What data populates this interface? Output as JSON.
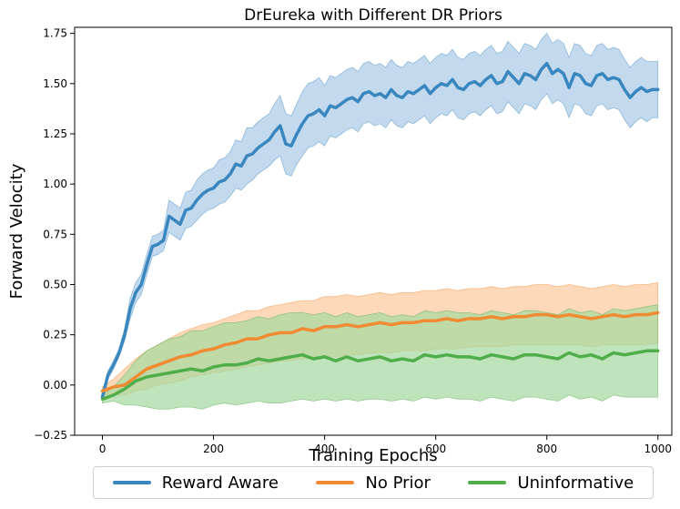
{
  "chart_data": {
    "type": "line",
    "title": "DrEureka with Different DR Priors",
    "xlabel": "Training Epochs",
    "ylabel": "Forward Velocity",
    "xlim": [
      -50,
      1025
    ],
    "ylim": [
      -0.25,
      1.78
    ],
    "xticks": [
      0,
      200,
      400,
      600,
      800,
      1000
    ],
    "xtick_labels": [
      "0",
      "200",
      "400",
      "600",
      "800",
      "1000"
    ],
    "yticks": [
      -0.25,
      0.0,
      0.25,
      0.5,
      0.75,
      1.0,
      1.25,
      1.5,
      1.75
    ],
    "ytick_labels": [
      "−0.25",
      "0.00",
      "0.25",
      "0.50",
      "0.75",
      "1.00",
      "1.25",
      "1.50",
      "1.75"
    ],
    "grid": false,
    "legend_position": "bottom-center",
    "series": [
      {
        "name": "Reward Aware",
        "color": "#3a87c0",
        "band_color": "#a9c9e6",
        "x": [
          0,
          10,
          20,
          30,
          40,
          50,
          60,
          70,
          80,
          90,
          100,
          110,
          120,
          130,
          140,
          150,
          160,
          170,
          180,
          190,
          200,
          210,
          220,
          230,
          240,
          250,
          260,
          270,
          280,
          290,
          300,
          310,
          320,
          330,
          340,
          350,
          360,
          370,
          380,
          390,
          400,
          410,
          420,
          430,
          440,
          450,
          460,
          470,
          480,
          490,
          500,
          510,
          520,
          530,
          540,
          550,
          560,
          570,
          580,
          590,
          600,
          610,
          620,
          630,
          640,
          650,
          660,
          670,
          680,
          690,
          700,
          710,
          720,
          730,
          740,
          750,
          760,
          770,
          780,
          790,
          800,
          810,
          820,
          830,
          840,
          850,
          860,
          870,
          880,
          890,
          900,
          910,
          920,
          930,
          940,
          950,
          960,
          970,
          980,
          990,
          1000
        ],
        "y": [
          -0.06,
          0.05,
          0.1,
          0.16,
          0.25,
          0.38,
          0.46,
          0.5,
          0.6,
          0.69,
          0.7,
          0.72,
          0.84,
          0.82,
          0.8,
          0.87,
          0.88,
          0.92,
          0.95,
          0.97,
          0.98,
          1.01,
          1.02,
          1.05,
          1.1,
          1.09,
          1.14,
          1.15,
          1.18,
          1.2,
          1.22,
          1.26,
          1.29,
          1.2,
          1.19,
          1.25,
          1.3,
          1.34,
          1.35,
          1.37,
          1.34,
          1.39,
          1.38,
          1.4,
          1.42,
          1.43,
          1.41,
          1.45,
          1.46,
          1.44,
          1.45,
          1.43,
          1.47,
          1.44,
          1.43,
          1.46,
          1.45,
          1.47,
          1.49,
          1.45,
          1.48,
          1.5,
          1.49,
          1.52,
          1.48,
          1.47,
          1.5,
          1.51,
          1.49,
          1.52,
          1.54,
          1.5,
          1.51,
          1.56,
          1.53,
          1.5,
          1.55,
          1.54,
          1.52,
          1.57,
          1.6,
          1.55,
          1.57,
          1.55,
          1.48,
          1.55,
          1.54,
          1.5,
          1.49,
          1.54,
          1.55,
          1.52,
          1.53,
          1.52,
          1.47,
          1.43,
          1.46,
          1.48,
          1.46,
          1.47,
          1.47
        ],
        "lower": [
          -0.07,
          0.03,
          0.08,
          0.14,
          0.22,
          0.33,
          0.41,
          0.45,
          0.55,
          0.64,
          0.65,
          0.67,
          0.76,
          0.74,
          0.72,
          0.78,
          0.79,
          0.82,
          0.85,
          0.87,
          0.88,
          0.9,
          0.91,
          0.94,
          0.98,
          0.97,
          1.0,
          1.02,
          1.05,
          1.07,
          1.09,
          1.12,
          1.14,
          1.05,
          1.04,
          1.1,
          1.14,
          1.18,
          1.19,
          1.21,
          1.19,
          1.24,
          1.23,
          1.25,
          1.27,
          1.28,
          1.26,
          1.3,
          1.31,
          1.29,
          1.3,
          1.28,
          1.32,
          1.29,
          1.28,
          1.31,
          1.3,
          1.32,
          1.34,
          1.3,
          1.33,
          1.35,
          1.34,
          1.37,
          1.33,
          1.32,
          1.35,
          1.36,
          1.34,
          1.37,
          1.39,
          1.35,
          1.36,
          1.41,
          1.38,
          1.35,
          1.4,
          1.39,
          1.37,
          1.42,
          1.45,
          1.4,
          1.42,
          1.4,
          1.33,
          1.4,
          1.39,
          1.35,
          1.34,
          1.39,
          1.4,
          1.37,
          1.38,
          1.37,
          1.32,
          1.28,
          1.31,
          1.33,
          1.31,
          1.33,
          1.33
        ],
        "upper": [
          -0.05,
          0.07,
          0.12,
          0.18,
          0.28,
          0.43,
          0.51,
          0.55,
          0.65,
          0.74,
          0.75,
          0.77,
          0.92,
          0.9,
          0.88,
          0.96,
          0.97,
          1.02,
          1.05,
          1.07,
          1.08,
          1.12,
          1.13,
          1.16,
          1.22,
          1.21,
          1.28,
          1.28,
          1.31,
          1.33,
          1.35,
          1.4,
          1.44,
          1.35,
          1.34,
          1.4,
          1.46,
          1.5,
          1.51,
          1.53,
          1.49,
          1.54,
          1.53,
          1.55,
          1.57,
          1.58,
          1.56,
          1.6,
          1.61,
          1.59,
          1.6,
          1.58,
          1.62,
          1.59,
          1.58,
          1.61,
          1.6,
          1.62,
          1.64,
          1.6,
          1.63,
          1.65,
          1.64,
          1.67,
          1.63,
          1.62,
          1.65,
          1.66,
          1.64,
          1.67,
          1.69,
          1.65,
          1.66,
          1.71,
          1.68,
          1.65,
          1.7,
          1.69,
          1.67,
          1.72,
          1.75,
          1.7,
          1.72,
          1.7,
          1.63,
          1.7,
          1.69,
          1.65,
          1.64,
          1.69,
          1.7,
          1.67,
          1.68,
          1.67,
          1.62,
          1.58,
          1.61,
          1.63,
          1.61,
          1.61,
          1.61
        ]
      },
      {
        "name": "No Prior",
        "color": "#f08a33",
        "band_color": "#fcc99c",
        "x": [
          0,
          20,
          40,
          60,
          80,
          100,
          120,
          140,
          160,
          180,
          200,
          220,
          240,
          260,
          280,
          300,
          320,
          340,
          360,
          380,
          400,
          420,
          440,
          460,
          480,
          500,
          520,
          540,
          560,
          580,
          600,
          620,
          640,
          660,
          680,
          700,
          720,
          740,
          760,
          780,
          800,
          820,
          840,
          860,
          880,
          900,
          920,
          940,
          960,
          980,
          1000
        ],
        "y": [
          -0.03,
          -0.01,
          0.0,
          0.04,
          0.08,
          0.1,
          0.12,
          0.14,
          0.15,
          0.17,
          0.18,
          0.2,
          0.21,
          0.23,
          0.23,
          0.25,
          0.26,
          0.26,
          0.28,
          0.27,
          0.29,
          0.29,
          0.3,
          0.29,
          0.3,
          0.31,
          0.3,
          0.31,
          0.31,
          0.32,
          0.32,
          0.33,
          0.32,
          0.33,
          0.33,
          0.34,
          0.33,
          0.34,
          0.34,
          0.35,
          0.35,
          0.34,
          0.35,
          0.34,
          0.33,
          0.34,
          0.35,
          0.34,
          0.35,
          0.35,
          0.36
        ],
        "lower": [
          -0.05,
          -0.05,
          -0.05,
          -0.03,
          -0.02,
          0.0,
          0.01,
          0.02,
          0.04,
          0.05,
          0.06,
          0.07,
          0.08,
          0.09,
          0.1,
          0.11,
          0.12,
          0.12,
          0.13,
          0.13,
          0.14,
          0.14,
          0.15,
          0.15,
          0.16,
          0.16,
          0.16,
          0.17,
          0.17,
          0.17,
          0.18,
          0.18,
          0.18,
          0.19,
          0.19,
          0.19,
          0.19,
          0.2,
          0.2,
          0.2,
          0.2,
          0.2,
          0.2,
          0.2,
          0.19,
          0.2,
          0.2,
          0.2,
          0.2,
          0.2,
          0.21
        ],
        "upper": [
          -0.01,
          0.03,
          0.08,
          0.13,
          0.17,
          0.2,
          0.23,
          0.26,
          0.28,
          0.3,
          0.31,
          0.33,
          0.35,
          0.37,
          0.37,
          0.39,
          0.4,
          0.41,
          0.42,
          0.42,
          0.44,
          0.44,
          0.45,
          0.44,
          0.45,
          0.46,
          0.45,
          0.46,
          0.46,
          0.47,
          0.47,
          0.48,
          0.47,
          0.48,
          0.48,
          0.49,
          0.48,
          0.49,
          0.49,
          0.5,
          0.5,
          0.49,
          0.5,
          0.49,
          0.48,
          0.49,
          0.5,
          0.49,
          0.5,
          0.5,
          0.51
        ]
      },
      {
        "name": "Uninformative",
        "color": "#4fae4a",
        "band_color": "#a4d8a0",
        "x": [
          0,
          20,
          40,
          60,
          80,
          100,
          120,
          140,
          160,
          180,
          200,
          220,
          240,
          260,
          280,
          300,
          320,
          340,
          360,
          380,
          400,
          420,
          440,
          460,
          480,
          500,
          520,
          540,
          560,
          580,
          600,
          620,
          640,
          660,
          680,
          700,
          720,
          740,
          760,
          780,
          800,
          820,
          840,
          860,
          880,
          900,
          920,
          940,
          960,
          980,
          1000
        ],
        "y": [
          -0.07,
          -0.05,
          -0.02,
          0.02,
          0.04,
          0.05,
          0.06,
          0.07,
          0.08,
          0.07,
          0.09,
          0.1,
          0.1,
          0.11,
          0.13,
          0.12,
          0.13,
          0.14,
          0.15,
          0.13,
          0.14,
          0.12,
          0.14,
          0.12,
          0.13,
          0.14,
          0.12,
          0.13,
          0.12,
          0.15,
          0.14,
          0.15,
          0.14,
          0.14,
          0.13,
          0.15,
          0.14,
          0.13,
          0.15,
          0.15,
          0.14,
          0.13,
          0.16,
          0.14,
          0.15,
          0.13,
          0.16,
          0.15,
          0.16,
          0.17,
          0.17
        ],
        "lower": [
          -0.09,
          -0.08,
          -0.1,
          -0.1,
          -0.11,
          -0.12,
          -0.12,
          -0.11,
          -0.11,
          -0.12,
          -0.1,
          -0.09,
          -0.1,
          -0.09,
          -0.08,
          -0.09,
          -0.09,
          -0.08,
          -0.07,
          -0.08,
          -0.07,
          -0.08,
          -0.07,
          -0.08,
          -0.07,
          -0.07,
          -0.08,
          -0.07,
          -0.08,
          -0.06,
          -0.07,
          -0.06,
          -0.07,
          -0.07,
          -0.08,
          -0.06,
          -0.07,
          -0.08,
          -0.06,
          -0.06,
          -0.07,
          -0.08,
          -0.05,
          -0.07,
          -0.06,
          -0.08,
          -0.05,
          -0.06,
          -0.06,
          -0.06,
          -0.06
        ],
        "upper": [
          -0.05,
          -0.01,
          0.05,
          0.12,
          0.17,
          0.2,
          0.23,
          0.24,
          0.27,
          0.27,
          0.29,
          0.31,
          0.31,
          0.32,
          0.34,
          0.33,
          0.35,
          0.36,
          0.36,
          0.35,
          0.36,
          0.34,
          0.36,
          0.34,
          0.35,
          0.36,
          0.34,
          0.35,
          0.34,
          0.37,
          0.36,
          0.37,
          0.36,
          0.36,
          0.35,
          0.37,
          0.36,
          0.35,
          0.37,
          0.37,
          0.36,
          0.35,
          0.38,
          0.36,
          0.37,
          0.35,
          0.38,
          0.37,
          0.38,
          0.39,
          0.4
        ]
      }
    ]
  }
}
